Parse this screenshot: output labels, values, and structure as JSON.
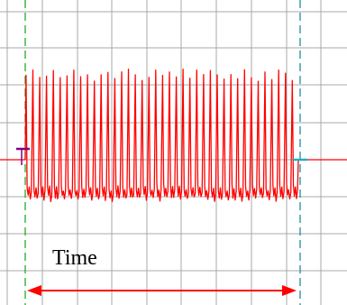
{
  "colors": {
    "background": "#ffffff",
    "grid": "#a9a9a9",
    "signal": "#ff0000",
    "cursor_left": "#22aa22",
    "cursor_right": "#1c8fa0",
    "marker_left": "#800080",
    "marker_right": "#20b0c0",
    "arrow": "#ff0000"
  },
  "chart_data": {
    "type": "line",
    "title": "",
    "xlabel": "",
    "ylabel": "",
    "grid": true,
    "annotations": [
      {
        "text": "Time"
      }
    ],
    "series": [
      {
        "pulse_count": 40,
        "baseline_level": 0.0,
        "peak_level": 2.45,
        "trough_level": -0.75
      }
    ]
  }
}
